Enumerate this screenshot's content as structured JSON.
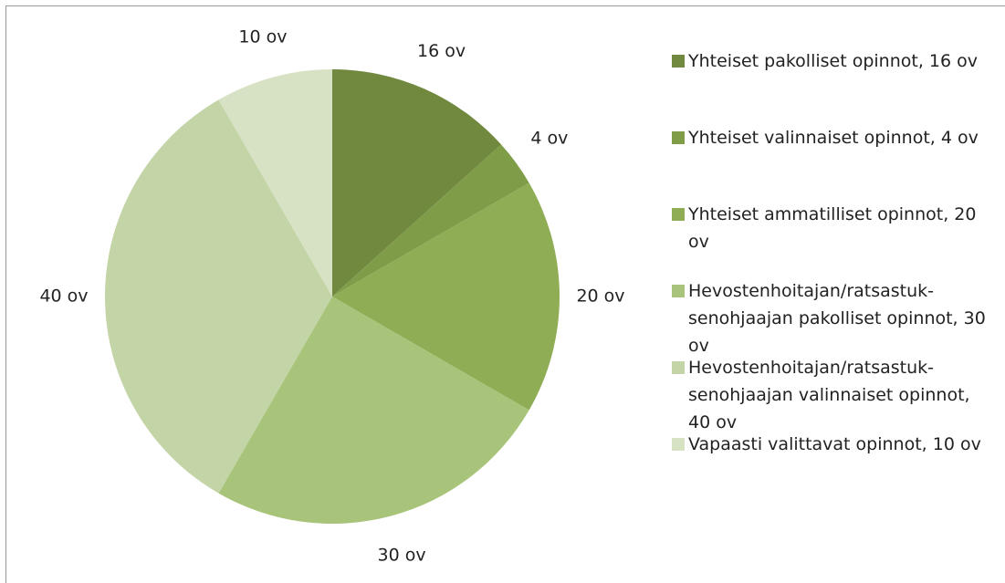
{
  "chart_data": {
    "type": "pie",
    "categories": [
      "Yhteiset pakolliset opinnot, 16 ov",
      "Yhteiset valinnaiset opinnot, 4 ov",
      "Yhteiset ammatilliset opinnot, 20 ov",
      "Hevostenhoitajan/ratsastuk­senohjaajan pakolliset opinnot, 30 ov",
      "Hevostenhoitajan/ratsastuk­senohjaajan valinnaiset opinnot, 40 ov",
      "Vapaasti valittavat opinnot, 10 ov"
    ],
    "values": [
      16,
      4,
      20,
      30,
      40,
      10
    ],
    "value_labels": [
      "16 ov",
      "4 ov",
      "20 ov",
      "30 ov",
      "40 ov",
      "10 ov"
    ],
    "colors": [
      "#71893f",
      "#7f9c48",
      "#8fad55",
      "#a8c47a",
      "#c3d4a6",
      "#d7e2c4"
    ],
    "legend": "right"
  }
}
